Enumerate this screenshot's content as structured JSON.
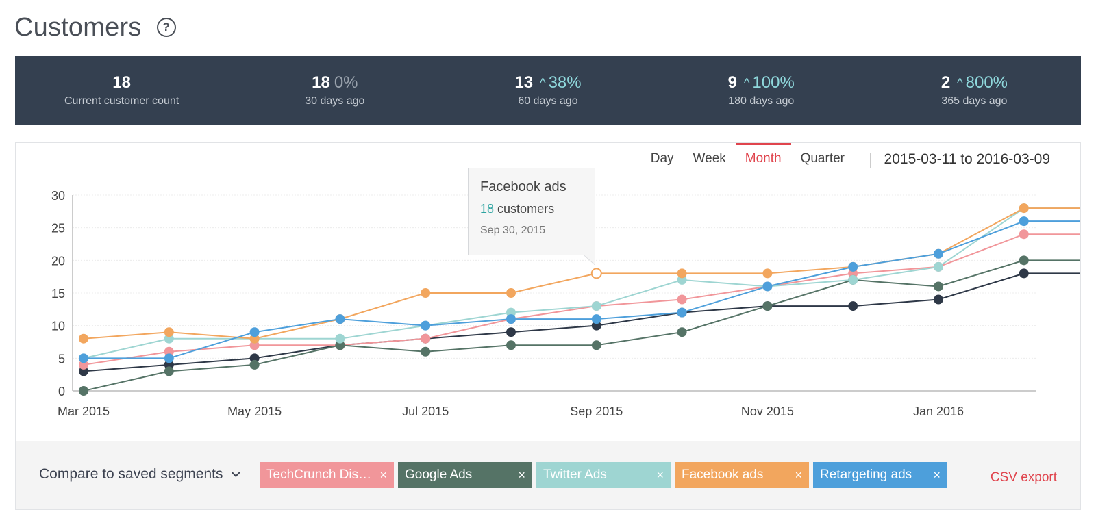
{
  "page": {
    "title": "Customers",
    "help_glyph": "?"
  },
  "stats": [
    {
      "value": "18",
      "change": "",
      "change_type": "none",
      "label": "Current customer count"
    },
    {
      "value": "18",
      "change": "0%",
      "change_type": "neutral",
      "label": "30 days ago"
    },
    {
      "value": "13",
      "change": "38%",
      "change_type": "up",
      "label": "60 days ago"
    },
    {
      "value": "9",
      "change": "100%",
      "change_type": "up",
      "label": "180 days ago"
    },
    {
      "value": "2",
      "change": "800%",
      "change_type": "up",
      "label": "365 days ago"
    }
  ],
  "periods": {
    "day": "Day",
    "week": "Week",
    "month": "Month",
    "quarter": "Quarter",
    "active": "Month"
  },
  "date_range": "2015-03-11 to 2016-03-09",
  "tooltip": {
    "title": "Facebook ads",
    "value": "18",
    "unit": "customers",
    "date": "Sep 30, 2015"
  },
  "segments": {
    "compare_label": "Compare to saved segments",
    "chips": [
      {
        "label": "TechCrunch Disr…",
        "color": "#f1969a"
      },
      {
        "label": "Google Ads",
        "color": "#557366"
      },
      {
        "label": "Twitter Ads",
        "color": "#9ed5d2"
      },
      {
        "label": "Facebook ads",
        "color": "#f2a65e"
      },
      {
        "label": "Retargeting ads",
        "color": "#4d9fdb"
      }
    ],
    "close_glyph": "×",
    "csv_label": "CSV export"
  },
  "chart_data": {
    "type": "line",
    "y_ticks": [
      "0",
      "5",
      "10",
      "15",
      "20",
      "25",
      "30"
    ],
    "ylim": [
      0,
      30
    ],
    "x_labels": [
      "Mar 2015",
      "May 2015",
      "Jul 2015",
      "Sep 2015",
      "Nov 2015",
      "Jan 2016"
    ],
    "x": [
      "Mar 2015",
      "Apr 2015",
      "May 2015",
      "Jun 2015",
      "Jul 2015",
      "Aug 2015",
      "Sep 2015",
      "Oct 2015",
      "Nov 2015",
      "Dec 2015",
      "Jan 2016",
      "Feb 2016",
      "Mar 2016"
    ],
    "series": [
      {
        "name": "Current",
        "color": "#2e3847",
        "values": [
          3,
          4,
          5,
          7,
          8,
          9,
          10,
          12,
          13,
          13,
          14,
          18,
          18
        ]
      },
      {
        "name": "TechCrunch Disr…",
        "color": "#f1969a",
        "values": [
          4,
          6,
          7,
          7,
          8,
          11,
          13,
          14,
          16,
          18,
          19,
          24,
          24
        ]
      },
      {
        "name": "Google Ads",
        "color": "#557366",
        "values": [
          0,
          3,
          4,
          7,
          6,
          7,
          7,
          9,
          13,
          17,
          16,
          20,
          20
        ]
      },
      {
        "name": "Twitter Ads",
        "color": "#9ed5d2",
        "values": [
          5,
          8,
          8,
          8,
          10,
          12,
          13,
          17,
          16,
          17,
          19,
          28,
          28
        ]
      },
      {
        "name": "Facebook ads",
        "color": "#f2a65e",
        "values": [
          8,
          9,
          8,
          11,
          15,
          15,
          18,
          18,
          18,
          19,
          21,
          28,
          28
        ]
      },
      {
        "name": "Retargeting ads",
        "color": "#4d9fdb",
        "values": [
          5,
          5,
          9,
          11,
          10,
          11,
          11,
          12,
          16,
          19,
          21,
          26,
          26
        ]
      }
    ],
    "highlight": {
      "series": "Facebook ads",
      "x": "Sep 2015",
      "value": 18
    }
  }
}
